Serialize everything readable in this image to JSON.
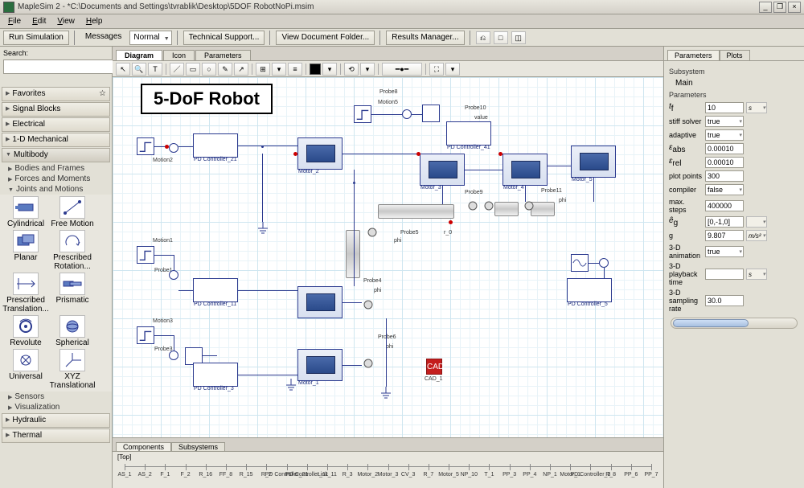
{
  "window": {
    "title": "MapleSim 2 -  *C:\\Documents and Settings\\tvrablik\\Desktop\\5DOF RobotNoPi.msim",
    "min": "_",
    "max": "❐",
    "close": "×"
  },
  "menu": {
    "file": "File",
    "edit": "Edit",
    "view": "View",
    "help": "Help"
  },
  "toolbar": {
    "run": "Run Simulation",
    "messages": "Messages",
    "mode": "Normal",
    "techsupport": "Technical Support...",
    "viewdoc": "View Document Folder...",
    "results": "Results Manager..."
  },
  "left": {
    "search_label": "Search:",
    "favorites": "Favorites",
    "signalblocks": "Signal Blocks",
    "electrical": "Electrical",
    "mech1d": "1-D Mechanical",
    "multibody": "Multibody",
    "bodies": "Bodies and Frames",
    "forces": "Forces and Moments",
    "joints": "Joints and Motions",
    "sensors": "Sensors",
    "visualization": "Visualization",
    "hydraulic": "Hydraulic",
    "thermal": "Thermal",
    "palette": {
      "cylindrical": "Cylindrical",
      "freemotion": "Free Motion",
      "planar": "Planar",
      "prescribedrot": "Prescribed Rotation...",
      "prescribedtrans": "Prescribed Translation...",
      "prismatic": "Prismatic",
      "revolute": "Revolute",
      "spherical": "Spherical",
      "universal": "Universal",
      "xyztrans": "XYZ Translational"
    }
  },
  "canvas": {
    "tab_diagram": "Diagram",
    "tab_icon": "Icon",
    "tab_params": "Parameters",
    "title": "5-DoF Robot",
    "labels": {
      "motion1": "Motion1",
      "motion2": "Motion2",
      "motion3": "Motion3",
      "motion5": "Motion5",
      "probe1": "Probe1",
      "probe3": "Probe3",
      "probe4": "Probe4",
      "probe5": "Probe5",
      "probe6": "Probe6",
      "probe8": "Probe8",
      "probe9": "Probe9",
      "probe10": "Probe10",
      "probe11": "Probe11",
      "pd11": "PD Controller_11",
      "pd21": "PD Controller_21",
      "pd3": "PD Controller_3",
      "pd41": "PD Controller_41",
      "pd5": "PD Controller_5",
      "motor1": "Motor_1",
      "motor2": "Motor_2",
      "motor3": "Motor_3",
      "motor4": "Motor_4",
      "motor5": "Motor_5",
      "phi": "phi",
      "value": "value",
      "r0": "r_0",
      "cad": "CAD",
      "cadlbl": "CAD_1"
    }
  },
  "bottom": {
    "tab_comp": "Components",
    "tab_subsys": "Subsystems",
    "top": "[Top]",
    "ticks": [
      "AS_1",
      "AS_2",
      "F_1",
      "F_2",
      "R_16",
      "FF_8",
      "R_15",
      "R_2",
      "PD Controller_21",
      "PD Controller_11",
      "Link_11",
      "R_3",
      "Motor_2",
      "Motor_3",
      "CV_3",
      "R_7",
      "Motor_5",
      "NP_10",
      "T_1",
      "PP_3",
      "PP_4",
      "NP_1",
      "Motor_1",
      "PD Controller_3",
      "R_8",
      "PP_6",
      "PP_7"
    ]
  },
  "right": {
    "tab_params": "Parameters",
    "tab_plots": "Plots",
    "subsystem": "Subsystem",
    "main": "Main",
    "parameters": "Parameters",
    "rows": {
      "tf_l": "t",
      "tf_sub": "f",
      "tf_v": "10",
      "tf_u": "s",
      "stiff_l": "stiff solver",
      "stiff_v": "true",
      "adaptive_l": "adaptive",
      "adaptive_v": "true",
      "eabs_l": "ε",
      "eabs_sub": "abs",
      "eabs_v": "0.00010",
      "erel_l": "ε",
      "erel_sub": "rel",
      "erel_v": "0.00010",
      "plotpts_l": "plot points",
      "plotpts_v": "300",
      "compiler_l": "compiler",
      "compiler_v": "false",
      "maxsteps_l": "max. steps",
      "maxsteps_v": "400000",
      "eg_l": "ê",
      "eg_sub": "g",
      "eg_v": "[0,-1,0]",
      "g_l": "g",
      "g_v": "9.807",
      "g_u": "m/s²",
      "anim3d_l": "3-D animation",
      "anim3d_v": "true",
      "playback_l": "3-D playback time",
      "playback_u": "s",
      "samp3d_l": "3-D sampling rate",
      "samp3d_v": "30.0"
    }
  },
  "colors": {
    "wire": "#2b3a8f",
    "accent": "#c41e1e"
  }
}
